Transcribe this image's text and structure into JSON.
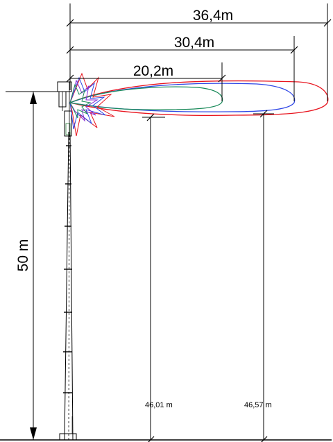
{
  "dimensions": {
    "range_red": "36,4m",
    "range_blue": "30,4m",
    "range_green": "20,2m",
    "mast_height": "50 m",
    "height_red": "46,01 m",
    "height_blue": "46,57 m"
  },
  "colors": {
    "red": "#e8141e",
    "blue": "#2e46e6",
    "green": "#1a8a5a",
    "purple": "#8a2ad6",
    "line": "#000000"
  }
}
